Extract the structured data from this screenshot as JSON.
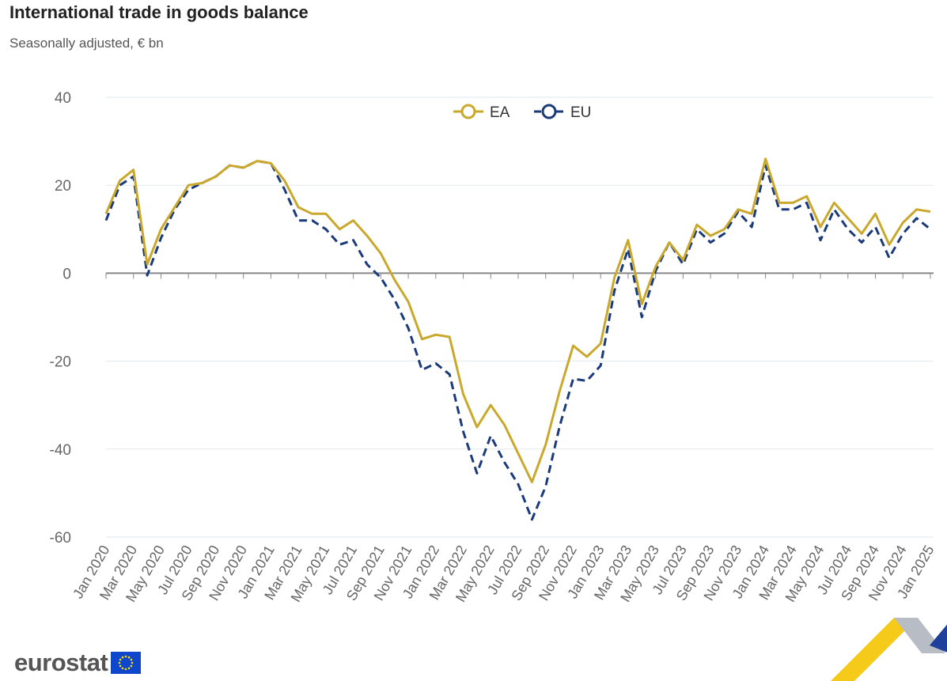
{
  "header": {
    "title": "International trade in goods balance",
    "subtitle": "Seasonally adjusted, € bn"
  },
  "logo": {
    "text": "eurostat"
  },
  "colors": {
    "EA": "#c9a82c",
    "EU": "#1b3a7a",
    "grid": "#e3e8ee",
    "axis": "#888888",
    "tick_text": "#666666"
  },
  "chart_data": {
    "type": "line",
    "title": "International trade in goods balance",
    "subtitle": "Seasonally adjusted, € bn",
    "xlabel": "",
    "ylabel": "",
    "ylim": [
      -60,
      40
    ],
    "yticks": [
      40,
      20,
      0,
      -20,
      -40,
      -60
    ],
    "legend": "top-center",
    "grid": true,
    "x": [
      "Jan 2020",
      "Feb 2020",
      "Mar 2020",
      "Apr 2020",
      "May 2020",
      "Jun 2020",
      "Jul 2020",
      "Aug 2020",
      "Sep 2020",
      "Oct 2020",
      "Nov 2020",
      "Dec 2020",
      "Jan 2021",
      "Feb 2021",
      "Mar 2021",
      "Apr 2021",
      "May 2021",
      "Jun 2021",
      "Jul 2021",
      "Aug 2021",
      "Sep 2021",
      "Oct 2021",
      "Nov 2021",
      "Dec 2021",
      "Jan 2022",
      "Feb 2022",
      "Mar 2022",
      "Apr 2022",
      "May 2022",
      "Jun 2022",
      "Jul 2022",
      "Aug 2022",
      "Sep 2022",
      "Oct 2022",
      "Nov 2022",
      "Dec 2022",
      "Jan 2023",
      "Feb 2023",
      "Mar 2023",
      "Apr 2023",
      "May 2023",
      "Jun 2023",
      "Jul 2023",
      "Aug 2023",
      "Sep 2023",
      "Oct 2023",
      "Nov 2023",
      "Dec 2023",
      "Jan 2024",
      "Feb 2024",
      "Mar 2024",
      "Apr 2024",
      "May 2024",
      "Jun 2024",
      "Jul 2024",
      "Aug 2024",
      "Sep 2024",
      "Oct 2024",
      "Nov 2024",
      "Dec 2024",
      "Jan 2025"
    ],
    "series": [
      {
        "name": "EA",
        "style": "solid",
        "values": [
          13.5,
          21,
          23.5,
          2,
          10,
          15,
          20,
          20.5,
          22,
          24.5,
          24,
          25.5,
          25,
          21,
          15,
          13.5,
          13.5,
          10,
          12,
          8.5,
          4.5,
          -1.5,
          -6.5,
          -15,
          -14,
          -14.5,
          -27.5,
          -35,
          -30,
          -34.5,
          -41,
          -47.5,
          -39,
          -27,
          -16.5,
          -19,
          -16,
          -1,
          7.5,
          -7,
          1.5,
          7,
          3,
          11,
          8.5,
          10,
          14.5,
          13.5,
          26,
          16,
          16,
          17.5,
          10.5,
          16,
          12.5,
          9,
          13.5,
          6.5,
          11.5,
          14.5,
          14
        ]
      },
      {
        "name": "EU",
        "style": "dashed",
        "values": [
          12,
          20,
          22,
          -0.5,
          8,
          14.5,
          19,
          20.5,
          22,
          24.5,
          24,
          25.5,
          25,
          19,
          12,
          12,
          10,
          6.5,
          7.5,
          2,
          -1,
          -6,
          -12.5,
          -22,
          -20.5,
          -23,
          -36,
          -45.5,
          -37,
          -43,
          -48,
          -56,
          -48.5,
          -35,
          -24,
          -24.5,
          -21,
          -4,
          5.5,
          -10,
          0.5,
          7,
          2,
          10,
          7,
          9,
          14,
          10.5,
          24.5,
          14.5,
          14.5,
          16,
          7.5,
          14.5,
          10,
          7,
          10.5,
          3.5,
          9,
          12.5,
          10
        ]
      }
    ]
  }
}
